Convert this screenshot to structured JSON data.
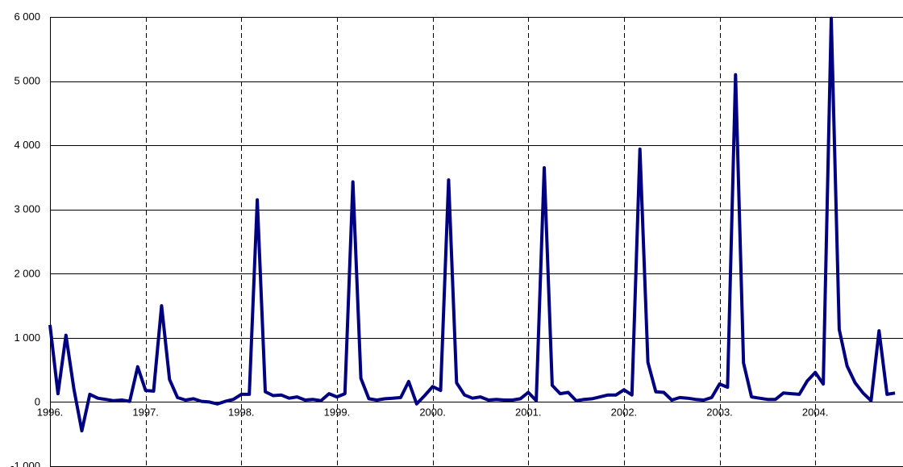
{
  "chart_data": {
    "type": "line",
    "title": "",
    "xlabel": "",
    "ylabel": "",
    "ylim": [
      -1000,
      6000
    ],
    "yticks": [
      -1000,
      0,
      1000,
      2000,
      3000,
      4000,
      5000,
      6000
    ],
    "ytick_labels": [
      "-1 000",
      "0",
      "1 000",
      "2 000",
      "3 000",
      "4 000",
      "5 000",
      "6 000"
    ],
    "xlim": [
      1996,
      2004.917
    ],
    "year_labels": [
      {
        "x": 1996,
        "label": "1996."
      },
      {
        "x": 1997,
        "label": "1997."
      },
      {
        "x": 1998,
        "label": "1998."
      },
      {
        "x": 1999,
        "label": "1999."
      },
      {
        "x": 2000,
        "label": "2000."
      },
      {
        "x": 2001,
        "label": "2001."
      },
      {
        "x": 2002,
        "label": "2002."
      },
      {
        "x": 2003,
        "label": "2003."
      },
      {
        "x": 2004,
        "label": "2004."
      }
    ],
    "grid": {
      "horizontal": true,
      "vertical_dashed": true
    },
    "line_color": "#000080",
    "series": [
      {
        "values": [
          1200,
          130,
          1040,
          200,
          -450,
          120,
          60,
          40,
          20,
          30,
          10,
          550,
          180,
          170,
          1500,
          350,
          70,
          30,
          50,
          10,
          0,
          -30,
          10,
          40,
          120,
          120,
          3150,
          160,
          100,
          110,
          60,
          80,
          30,
          40,
          20,
          130,
          80,
          130,
          3430,
          370,
          50,
          30,
          50,
          60,
          70,
          320,
          -30,
          100,
          240,
          180,
          3460,
          300,
          110,
          60,
          80,
          30,
          40,
          30,
          30,
          50,
          150,
          20,
          3650,
          260,
          130,
          150,
          20,
          40,
          50,
          80,
          110,
          110,
          190,
          110,
          3940,
          620,
          160,
          150,
          30,
          70,
          60,
          40,
          30,
          70,
          280,
          230,
          5100,
          610,
          80,
          60,
          40,
          40,
          140,
          130,
          120,
          330,
          460,
          280,
          5980,
          1130,
          560,
          300,
          140,
          20,
          1110,
          120,
          140
        ]
      }
    ]
  }
}
